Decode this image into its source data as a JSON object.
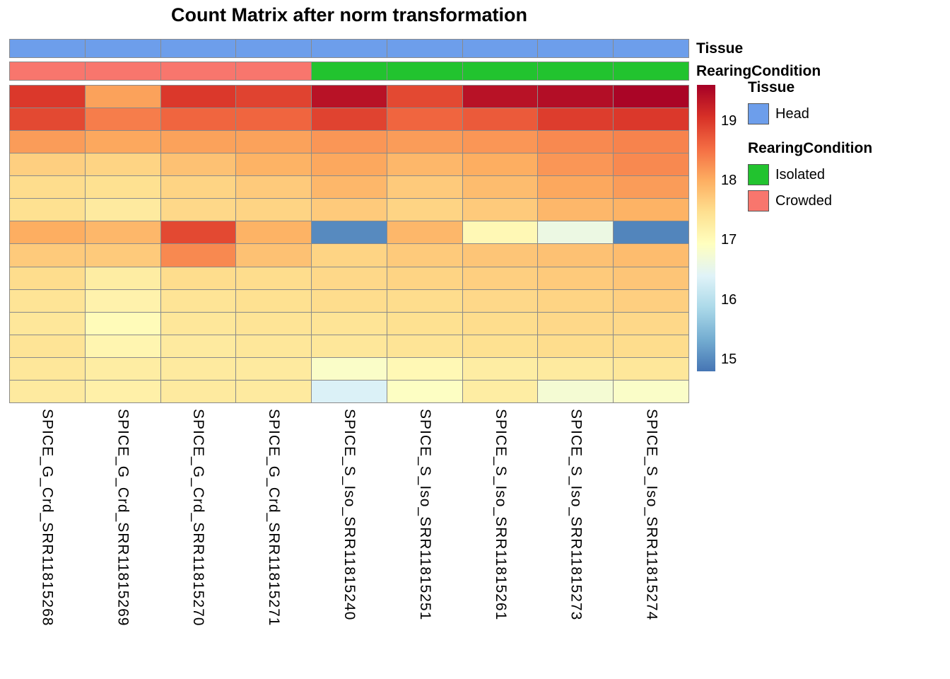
{
  "title": "Count Matrix after norm transformation",
  "annotations": {
    "tissue": {
      "label": "Tissue",
      "values": [
        "Head",
        "Head",
        "Head",
        "Head",
        "Head",
        "Head",
        "Head",
        "Head",
        "Head"
      ],
      "colors": {
        "Head": "#6D9EEB"
      }
    },
    "rearing": {
      "label": "RearingCondition",
      "values": [
        "Crowded",
        "Crowded",
        "Crowded",
        "Crowded",
        "Isolated",
        "Isolated",
        "Isolated",
        "Isolated",
        "Isolated"
      ],
      "colors": {
        "Isolated": "#22C32F",
        "Crowded": "#F8766D"
      }
    }
  },
  "legend": {
    "tissue_title": "Tissue",
    "tissue_items": [
      {
        "label": "Head",
        "color": "#6D9EEB"
      }
    ],
    "rearing_title": "RearingCondition",
    "rearing_items": [
      {
        "label": "Isolated",
        "color": "#22C32F"
      },
      {
        "label": "Crowded",
        "color": "#F8766D"
      }
    ]
  },
  "colorbar": {
    "ticks": [
      19,
      18,
      17,
      16,
      15
    ],
    "min": 14.8,
    "max": 19.6,
    "stops": [
      "#4575B4",
      "#74ADD1",
      "#ABD9E9",
      "#E0F3F8",
      "#FFFFBF",
      "#FEE090",
      "#FDAE61",
      "#F46D43",
      "#D73027",
      "#A50026"
    ]
  },
  "chart_data": {
    "type": "heatmap",
    "title": "Count Matrix after norm transformation",
    "colormap": "RdYlBu reversed (blue=low, red=high)",
    "value_range": [
      14.8,
      19.6
    ],
    "colorbar_ticks": [
      15,
      16,
      17,
      18,
      19
    ],
    "legend_position": "right",
    "grid": true,
    "columns": [
      "SPICE_G_Crd_SRR11815268",
      "SPICE_G_Crd_SRR11815269",
      "SPICE_G_Crd_SRR11815270",
      "SPICE_G_Crd_SRR11815271",
      "SPICE_S_Iso_SRR11815240",
      "SPICE_S_Iso_SRR11815251",
      "SPICE_S_Iso_SRR11815261",
      "SPICE_S_Iso_SRR11815273",
      "SPICE_S_Iso_SRR11815274"
    ],
    "column_annotations": {
      "Tissue": [
        "Head",
        "Head",
        "Head",
        "Head",
        "Head",
        "Head",
        "Head",
        "Head",
        "Head"
      ],
      "RearingCondition": [
        "Crowded",
        "Crowded",
        "Crowded",
        "Crowded",
        "Isolated",
        "Isolated",
        "Isolated",
        "Isolated",
        "Isolated"
      ]
    },
    "values": [
      [
        19.0,
        18.1,
        19.0,
        18.9,
        19.4,
        18.85,
        19.4,
        19.45,
        19.55
      ],
      [
        18.85,
        18.4,
        18.6,
        18.6,
        18.9,
        18.6,
        18.7,
        18.95,
        19.0
      ],
      [
        18.15,
        18.05,
        18.1,
        18.1,
        18.2,
        18.15,
        18.2,
        18.3,
        18.35
      ],
      [
        17.65,
        17.6,
        17.8,
        17.95,
        18.05,
        17.9,
        18.0,
        18.2,
        18.3
      ],
      [
        17.5,
        17.45,
        17.6,
        17.7,
        17.9,
        17.7,
        17.85,
        18.05,
        18.15
      ],
      [
        17.45,
        17.3,
        17.55,
        17.6,
        17.7,
        17.6,
        17.7,
        17.9,
        17.95
      ],
      [
        18.0,
        17.9,
        18.85,
        17.95,
        15.0,
        17.9,
        17.05,
        16.6,
        14.95
      ],
      [
        17.7,
        17.7,
        18.3,
        17.8,
        17.6,
        17.7,
        17.75,
        17.8,
        17.85
      ],
      [
        17.5,
        17.25,
        17.5,
        17.5,
        17.55,
        17.6,
        17.65,
        17.7,
        17.75
      ],
      [
        17.4,
        17.15,
        17.4,
        17.45,
        17.5,
        17.5,
        17.55,
        17.6,
        17.65
      ],
      [
        17.35,
        17.0,
        17.35,
        17.4,
        17.4,
        17.45,
        17.5,
        17.55,
        17.55
      ],
      [
        17.4,
        17.1,
        17.3,
        17.35,
        17.35,
        17.4,
        17.45,
        17.5,
        17.5
      ],
      [
        17.35,
        17.25,
        17.3,
        17.3,
        16.85,
        17.05,
        17.25,
        17.3,
        17.35
      ],
      [
        17.3,
        17.2,
        17.3,
        17.3,
        16.35,
        16.9,
        17.25,
        16.75,
        16.85
      ]
    ]
  }
}
